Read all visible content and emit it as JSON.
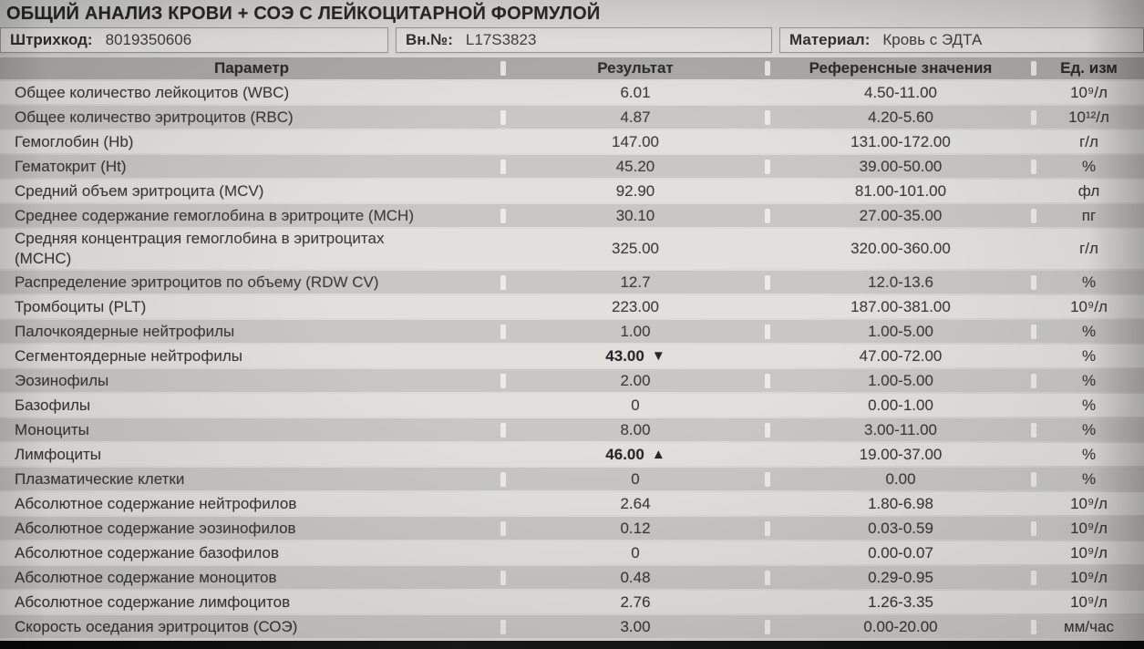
{
  "title": "ОБЩИЙ АНАЛИЗ КРОВИ + СОЭ С ЛЕЙКОЦИТАРНОЙ ФОРМУЛОЙ",
  "meta": {
    "barcode_label": "Штрихкод:",
    "barcode_value": "8019350606",
    "internal_label": "Вн.№:",
    "internal_value": "L17S3823",
    "material_label": "Материал:",
    "material_value": "Кровь с ЭДТА"
  },
  "table": {
    "headers": [
      "Параметр",
      "Результат",
      "Референсные значения",
      "Ед. изм"
    ],
    "rows": [
      {
        "param": "Общее количество лейкоцитов (WBC)",
        "result": "6.01",
        "flag": "",
        "ref": "4.50-11.00",
        "unit": "10⁹/л"
      },
      {
        "param": "Общее количество эритроцитов (RBC)",
        "result": "4.87",
        "flag": "",
        "ref": "4.20-5.60",
        "unit": "10¹²/л"
      },
      {
        "param": "Гемоглобин (Hb)",
        "result": "147.00",
        "flag": "",
        "ref": "131.00-172.00",
        "unit": "г/л"
      },
      {
        "param": "Гематокрит (Ht)",
        "result": "45.20",
        "flag": "",
        "ref": "39.00-50.00",
        "unit": "%"
      },
      {
        "param": "Средний объем эритроцита (MCV)",
        "result": "92.90",
        "flag": "",
        "ref": "81.00-101.00",
        "unit": "фл"
      },
      {
        "param": "Среднее содержание гемоглобина в эритроците (MCH)",
        "result": "30.10",
        "flag": "",
        "ref": "27.00-35.00",
        "unit": "пг"
      },
      {
        "param": "Средняя концентрация гемоглобина в эритроцитах\n(MCHC)",
        "result": "325.00",
        "flag": "",
        "ref": "320.00-360.00",
        "unit": "г/л"
      },
      {
        "param": "Распределение эритроцитов по объему (RDW CV)",
        "result": "12.7",
        "flag": "",
        "ref": "12.0-13.6",
        "unit": "%"
      },
      {
        "param": "Тромбоциты (PLT)",
        "result": "223.00",
        "flag": "",
        "ref": "187.00-381.00",
        "unit": "10⁹/л"
      },
      {
        "param": "Палочкоядерные нейтрофилы",
        "result": "1.00",
        "flag": "",
        "ref": "1.00-5.00",
        "unit": "%"
      },
      {
        "param": "Сегментоядерные нейтрофилы",
        "result": "43.00",
        "flag": "low",
        "ref": "47.00-72.00",
        "unit": "%"
      },
      {
        "param": "Эозинофилы",
        "result": "2.00",
        "flag": "",
        "ref": "1.00-5.00",
        "unit": "%"
      },
      {
        "param": "Базофилы",
        "result": "0",
        "flag": "",
        "ref": "0.00-1.00",
        "unit": "%"
      },
      {
        "param": "Моноциты",
        "result": "8.00",
        "flag": "",
        "ref": "3.00-11.00",
        "unit": "%"
      },
      {
        "param": "Лимфоциты",
        "result": "46.00",
        "flag": "high",
        "ref": "19.00-37.00",
        "unit": "%"
      },
      {
        "param": "Плазматические клетки",
        "result": "0",
        "flag": "",
        "ref": "0.00",
        "unit": "%"
      },
      {
        "param": "Абсолютное содержание нейтрофилов",
        "result": "2.64",
        "flag": "",
        "ref": "1.80-6.98",
        "unit": "10⁹/л"
      },
      {
        "param": "Абсолютное содержание эозинофилов",
        "result": "0.12",
        "flag": "",
        "ref": "0.03-0.59",
        "unit": "10⁹/л"
      },
      {
        "param": "Абсолютное содержание базофилов",
        "result": "0",
        "flag": "",
        "ref": "0.00-0.07",
        "unit": "10⁹/л"
      },
      {
        "param": "Абсолютное содержание моноцитов",
        "result": "0.48",
        "flag": "",
        "ref": "0.29-0.95",
        "unit": "10⁹/л"
      },
      {
        "param": "Абсолютное содержание лимфоцитов",
        "result": "2.76",
        "flag": "",
        "ref": "1.26-3.35",
        "unit": "10⁹/л"
      },
      {
        "param": "Скорость оседания эритроцитов (СОЭ)",
        "result": "3.00",
        "flag": "",
        "ref": "0.00-20.00",
        "unit": "мм/час"
      }
    ]
  },
  "icons": {
    "flag_low": "▼",
    "flag_high": "▲"
  },
  "colors": {
    "row_light": "#e0dfdb",
    "row_gray": "#c6c5c1",
    "header_row": "#a8a7a3",
    "photo_bg": "#d9d8d4",
    "text": "#333333",
    "abnormal_text": "#1d1d1d",
    "bottom_edge": "#0d0d0d"
  }
}
